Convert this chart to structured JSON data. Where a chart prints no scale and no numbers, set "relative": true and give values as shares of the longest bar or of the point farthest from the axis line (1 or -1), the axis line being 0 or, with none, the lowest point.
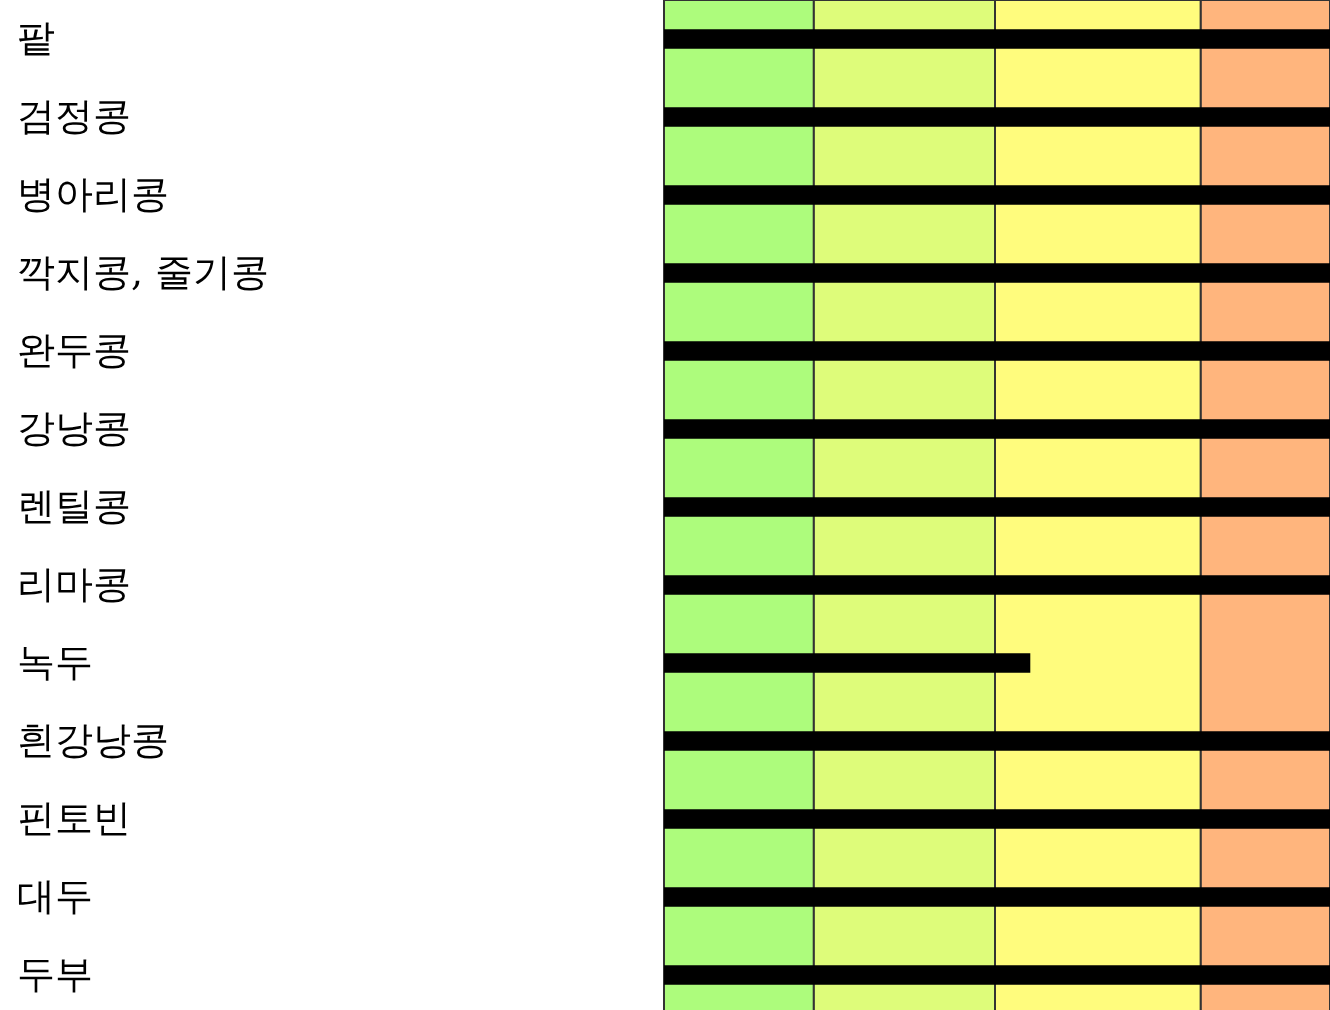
{
  "chart_data": {
    "type": "bar",
    "orientation": "horizontal",
    "relative": true,
    "categories": [
      "팥",
      "검정콩",
      "병아리콩",
      "깍지콩, 줄기콩",
      "완두콩",
      "강낭콩",
      "렌틸콩",
      "리마콩",
      "녹두",
      "흰강낭콩",
      "핀토빈",
      "대두",
      "두부"
    ],
    "series": [
      {
        "color": "#000000",
        "values": [
          1,
          1,
          1,
          1,
          1,
          1,
          1,
          1,
          0.55,
          1,
          1,
          1,
          1
        ]
      }
    ],
    "bands": [
      {
        "axis": "x",
        "from": 0,
        "to": 0.225,
        "color": "#adfc7c"
      },
      {
        "axis": "x",
        "from": 0.225,
        "to": 0.497,
        "color": "#defc7a"
      },
      {
        "axis": "x",
        "from": 0.497,
        "to": 0.806,
        "color": "#fffc7d"
      },
      {
        "axis": "x",
        "from": 0.806,
        "to": 1,
        "color": "#ffb57d"
      }
    ]
  }
}
